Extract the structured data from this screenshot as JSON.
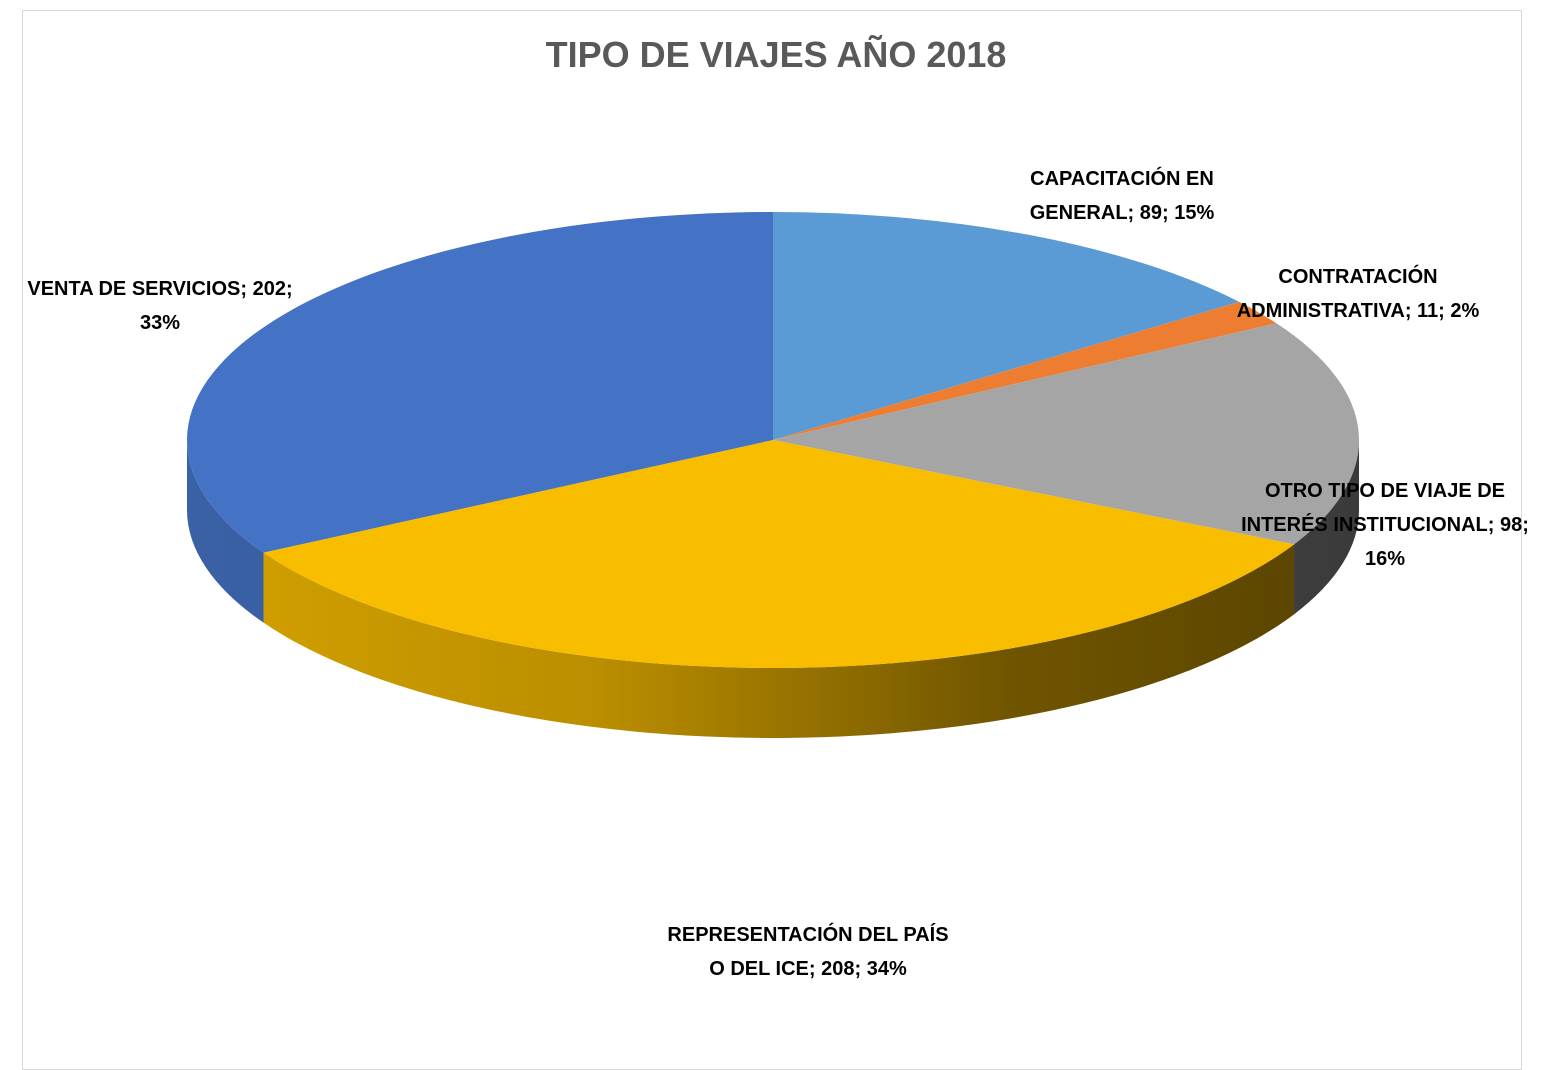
{
  "chart_data": {
    "type": "pie3d",
    "title": "TIPO DE VIAJES AÑO 2018",
    "categories": [
      "CAPACITACIÓN EN GENERAL",
      "CONTRATACIÓN ADMINISTRATIVA",
      "OTRO TIPO DE VIAJE DE INTERÉS INSTITUCIONAL",
      "REPRESENTACIÓN DEL PAÍS O DEL ICE",
      "VENTA DE SERVICIOS"
    ],
    "values": [
      89,
      11,
      98,
      208,
      202
    ],
    "value_labels": [
      "CAPACITACIÓN EN GENERAL; 89; 15%",
      "CONTRATACIÓN ADMINISTRATIVA; 11; 2%",
      "OTRO TIPO DE VIAJE DE INTERÉS INSTITUCIONAL; 98; 16%",
      "REPRESENTACIÓN DEL PAÍS O DEL ICE; 208; 34%",
      "VENTA DE SERVICIOS; 202; 33%"
    ],
    "colors": [
      "#5b9bd5",
      "#ed7d31",
      "#a5a5a5",
      "#f9bd00",
      "#4472c4"
    ]
  }
}
